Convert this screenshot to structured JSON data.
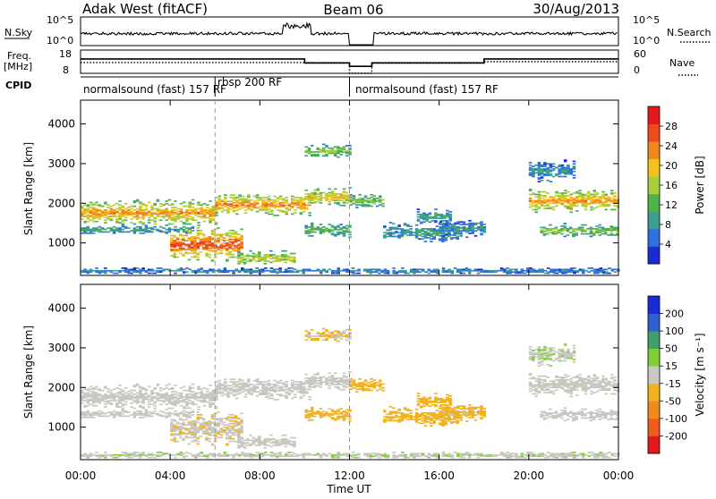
{
  "header": {
    "station": "Adak West (fitACF)",
    "beam": "Beam 06",
    "date": "30/Aug/2013"
  },
  "top_panels": {
    "nsky_label": "N.Sky",
    "nsky_ticks": [
      "10^5",
      "10^0"
    ],
    "nsearch_label": "N.Search",
    "nsearch_ticks": [
      "10^5",
      "10^0"
    ],
    "freq_label": "Freq.",
    "freq_unit": "[MHz]",
    "freq_ticks": [
      "18",
      "8"
    ],
    "nave_label": "Nave",
    "nave_ticks": [
      "60",
      "0"
    ],
    "cpid_label": "CPID",
    "cpid_segments": [
      {
        "label": "normalsound (fast) 157 RF",
        "start_h": 0,
        "end_h": 6
      },
      {
        "label": "rbsp 200 RF",
        "start_h": 6,
        "end_h": 12
      },
      {
        "label": "normalsound (fast) 157 RF",
        "start_h": 12,
        "end_h": 24
      }
    ],
    "freq_series_mhz": [
      [
        0,
        14.2
      ],
      [
        10,
        14.2
      ],
      [
        10,
        12.5
      ],
      [
        12,
        12.5
      ],
      [
        12,
        11.0
      ],
      [
        13,
        11.0
      ],
      [
        13,
        12.5
      ],
      [
        18,
        12.5
      ],
      [
        18,
        14.2
      ],
      [
        24,
        14.2
      ]
    ],
    "nave_series": [
      [
        0,
        28
      ],
      [
        10,
        28
      ],
      [
        10,
        26
      ],
      [
        12,
        26
      ],
      [
        12,
        0
      ],
      [
        13,
        0
      ],
      [
        13,
        26
      ],
      [
        18,
        26
      ],
      [
        18,
        30
      ],
      [
        24,
        30
      ]
    ]
  },
  "power_panel": {
    "ylabel": "Slant Range [km]",
    "yticks": [
      "4000",
      "3000",
      "2000",
      "1000"
    ],
    "colorbar_label": "Power [dB]",
    "colorbar_ticks": [
      "28",
      "24",
      "20",
      "16",
      "12",
      "8",
      "4"
    ]
  },
  "velocity_panel": {
    "ylabel": "Slant Range [km]",
    "yticks": [
      "4000",
      "3000",
      "2000",
      "1000"
    ],
    "colorbar_label": "Velocity [m s⁻¹]",
    "colorbar_ticks": [
      "200",
      "100",
      "50",
      "15",
      "-15",
      "-50",
      "-100",
      "-200"
    ]
  },
  "x_axis": {
    "label": "Time UT",
    "ticks": [
      "00:00",
      "04:00",
      "08:00",
      "12:00",
      "16:00",
      "20:00",
      "00:00"
    ]
  },
  "chart_data": {
    "type": "heatmap",
    "x_range_hours": [
      0,
      24
    ],
    "y_range_km": [
      180,
      4600
    ],
    "power_scale_db": [
      0,
      30
    ],
    "velocity_scale_ms": [
      -250,
      250
    ],
    "power_colors": [
      "#1a2bd6",
      "#2f6fe0",
      "#3c9e8f",
      "#4fb34a",
      "#a6cf3b",
      "#f2c21f",
      "#f08a1f",
      "#ef4a1e",
      "#e31a1c"
    ],
    "velocity_colors": [
      "#e31a1c",
      "#ef5a1e",
      "#f08a1f",
      "#f2b21f",
      "#c8c8c0",
      "#7fcf3b",
      "#3f9e6a",
      "#2f5fd0",
      "#1a2bd6"
    ],
    "echo_regions": [
      {
        "t0": 0.0,
        "t1": 6.0,
        "r_center": 1750,
        "r_width": 350,
        "power": 21,
        "velocity": -5
      },
      {
        "t0": 0.0,
        "t1": 5.0,
        "r_center": 1320,
        "r_width": 120,
        "power": 9,
        "velocity": -5
      },
      {
        "t0": 4.0,
        "t1": 7.2,
        "r_center": 950,
        "r_width": 450,
        "power": 25,
        "velocity": -20
      },
      {
        "t0": 6.0,
        "t1": 10.2,
        "r_center": 1950,
        "r_width": 300,
        "power": 22,
        "velocity": -5
      },
      {
        "t0": 7.0,
        "t1": 9.5,
        "r_center": 600,
        "r_width": 200,
        "power": 17,
        "velocity": -10
      },
      {
        "t0": 10.0,
        "t1": 12.0,
        "r_center": 2150,
        "r_width": 250,
        "power": 19,
        "velocity": -5
      },
      {
        "t0": 10.0,
        "t1": 12.0,
        "r_center": 3300,
        "r_width": 180,
        "power": 14,
        "velocity": -30
      },
      {
        "t0": 10.0,
        "t1": 12.0,
        "r_center": 1300,
        "r_width": 200,
        "power": 12,
        "velocity": -40
      },
      {
        "t0": 12.0,
        "t1": 13.5,
        "r_center": 2050,
        "r_width": 200,
        "power": 14,
        "velocity": -60
      },
      {
        "t0": 13.5,
        "t1": 17.0,
        "r_center": 1250,
        "r_width": 260,
        "power": 9,
        "velocity": -55
      },
      {
        "t0": 15.0,
        "t1": 16.5,
        "r_center": 1650,
        "r_width": 200,
        "power": 10,
        "velocity": -50
      },
      {
        "t0": 16.0,
        "t1": 18.0,
        "r_center": 1350,
        "r_width": 250,
        "power": 8,
        "velocity": -40
      },
      {
        "t0": 20.0,
        "t1": 24.0,
        "r_center": 2050,
        "r_width": 320,
        "power": 21,
        "velocity": -3
      },
      {
        "t0": 20.5,
        "t1": 24.0,
        "r_center": 1300,
        "r_width": 180,
        "power": 14,
        "velocity": -3
      },
      {
        "t0": 20.0,
        "t1": 22.0,
        "r_center": 2800,
        "r_width": 300,
        "power": 8,
        "velocity": 20
      },
      {
        "t0": 0.0,
        "t1": 24.0,
        "r_center": 280,
        "r_width": 90,
        "power": 7,
        "velocity": 20
      }
    ]
  }
}
